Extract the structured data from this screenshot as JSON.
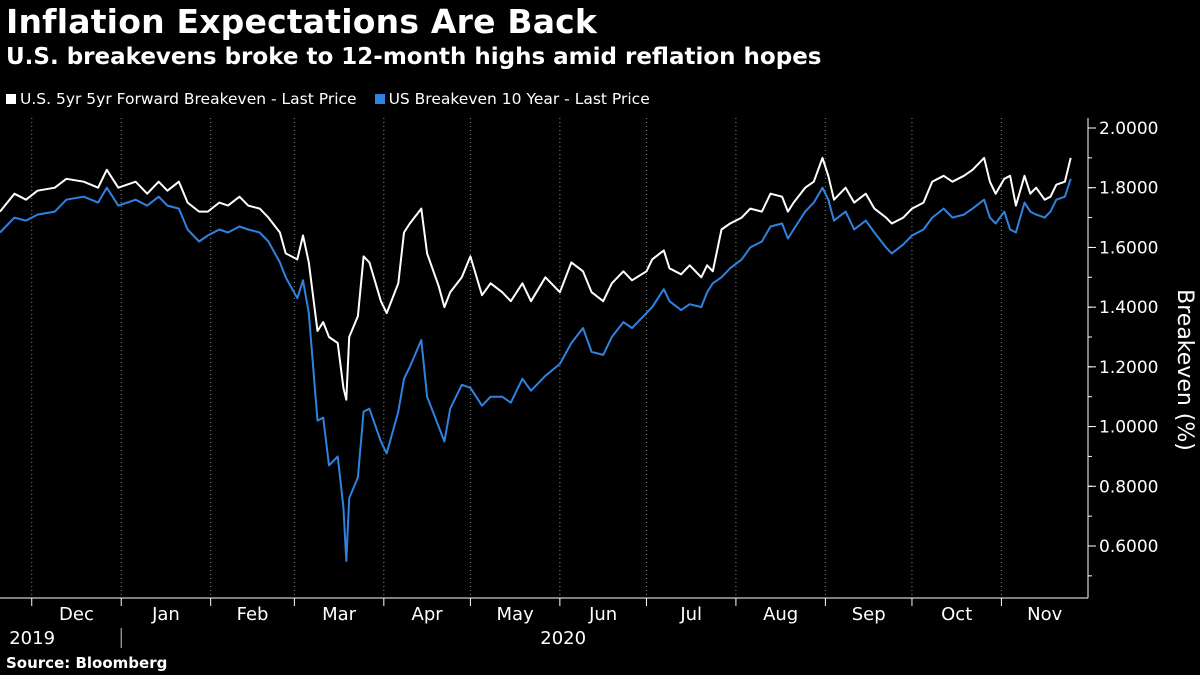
{
  "title": "Inflation Expectations Are Back",
  "subtitle": "U.S. breakevens broke to 12-month highs amid reflation hopes",
  "source": "Source: Bloomberg",
  "colors": {
    "background": "#000000",
    "series1": "#ffffff",
    "series2": "#2f82e0"
  },
  "chart_data": {
    "type": "line",
    "title": "Inflation Expectations Are Back",
    "subtitle": "U.S. breakevens broke to 12-month highs amid reflation hopes",
    "ylabel": "Breakeven (%)",
    "ylim": [
      0.5,
      2.05
    ],
    "yticks": [
      0.6,
      0.8,
      1.0,
      1.2,
      1.4,
      1.6,
      1.8,
      2.0
    ],
    "ytick_labels": [
      "0.6000",
      "0.8000",
      "1.0000",
      "1.2000",
      "1.4000",
      "1.6000",
      "1.8000",
      "2.0000"
    ],
    "xlim": [
      "2019-11-20",
      "2020-12-01"
    ],
    "month_labels": [
      "Dec",
      "Jan",
      "Feb",
      "Mar",
      "Apr",
      "May",
      "Jun",
      "Jul",
      "Aug",
      "Sep",
      "Oct",
      "Nov"
    ],
    "month_starts": [
      "2019-12-01",
      "2020-01-01",
      "2020-02-01",
      "2020-03-01",
      "2020-04-01",
      "2020-05-01",
      "2020-06-01",
      "2020-07-01",
      "2020-08-01",
      "2020-09-01",
      "2020-10-01",
      "2020-11-01"
    ],
    "year_labels": [
      {
        "label": "2019",
        "date": "2019-12-15"
      },
      {
        "label": "2020",
        "date": "2020-06-16"
      }
    ],
    "grid": "vertical dotted at month starts",
    "legend_position": "top-left",
    "series": [
      {
        "name": "U.S. 5yr 5yr Forward Breakeven - Last Price",
        "color": "#ffffff",
        "points": [
          [
            "2019-11-20",
            1.72
          ],
          [
            "2019-11-25",
            1.78
          ],
          [
            "2019-11-29",
            1.76
          ],
          [
            "2019-12-03",
            1.79
          ],
          [
            "2019-12-09",
            1.8
          ],
          [
            "2019-12-13",
            1.83
          ],
          [
            "2019-12-19",
            1.82
          ],
          [
            "2019-12-24",
            1.8
          ],
          [
            "2019-12-27",
            1.86
          ],
          [
            "2019-12-31",
            1.8
          ],
          [
            "2020-01-06",
            1.82
          ],
          [
            "2020-01-10",
            1.78
          ],
          [
            "2020-01-14",
            1.82
          ],
          [
            "2020-01-17",
            1.79
          ],
          [
            "2020-01-21",
            1.82
          ],
          [
            "2020-01-24",
            1.75
          ],
          [
            "2020-01-28",
            1.72
          ],
          [
            "2020-01-31",
            1.72
          ],
          [
            "2020-02-04",
            1.75
          ],
          [
            "2020-02-07",
            1.74
          ],
          [
            "2020-02-11",
            1.77
          ],
          [
            "2020-02-14",
            1.74
          ],
          [
            "2020-02-18",
            1.73
          ],
          [
            "2020-02-21",
            1.7
          ],
          [
            "2020-02-25",
            1.65
          ],
          [
            "2020-02-27",
            1.58
          ],
          [
            "2020-03-02",
            1.56
          ],
          [
            "2020-03-04",
            1.64
          ],
          [
            "2020-03-06",
            1.55
          ],
          [
            "2020-03-09",
            1.32
          ],
          [
            "2020-03-11",
            1.35
          ],
          [
            "2020-03-13",
            1.3
          ],
          [
            "2020-03-16",
            1.28
          ],
          [
            "2020-03-18",
            1.13
          ],
          [
            "2020-03-19",
            1.09
          ],
          [
            "2020-03-20",
            1.3
          ],
          [
            "2020-03-23",
            1.37
          ],
          [
            "2020-03-25",
            1.57
          ],
          [
            "2020-03-27",
            1.55
          ],
          [
            "2020-03-31",
            1.42
          ],
          [
            "2020-04-02",
            1.38
          ],
          [
            "2020-04-06",
            1.48
          ],
          [
            "2020-04-08",
            1.65
          ],
          [
            "2020-04-10",
            1.68
          ],
          [
            "2020-04-14",
            1.73
          ],
          [
            "2020-04-16",
            1.58
          ],
          [
            "2020-04-20",
            1.47
          ],
          [
            "2020-04-22",
            1.4
          ],
          [
            "2020-04-24",
            1.45
          ],
          [
            "2020-04-28",
            1.5
          ],
          [
            "2020-05-01",
            1.57
          ],
          [
            "2020-05-05",
            1.44
          ],
          [
            "2020-05-08",
            1.48
          ],
          [
            "2020-05-12",
            1.45
          ],
          [
            "2020-05-15",
            1.42
          ],
          [
            "2020-05-19",
            1.48
          ],
          [
            "2020-05-22",
            1.42
          ],
          [
            "2020-05-27",
            1.5
          ],
          [
            "2020-06-01",
            1.45
          ],
          [
            "2020-06-05",
            1.55
          ],
          [
            "2020-06-09",
            1.52
          ],
          [
            "2020-06-12",
            1.45
          ],
          [
            "2020-06-16",
            1.42
          ],
          [
            "2020-06-19",
            1.48
          ],
          [
            "2020-06-23",
            1.52
          ],
          [
            "2020-06-26",
            1.49
          ],
          [
            "2020-07-01",
            1.52
          ],
          [
            "2020-07-03",
            1.56
          ],
          [
            "2020-07-07",
            1.59
          ],
          [
            "2020-07-09",
            1.53
          ],
          [
            "2020-07-13",
            1.51
          ],
          [
            "2020-07-16",
            1.54
          ],
          [
            "2020-07-20",
            1.5
          ],
          [
            "2020-07-22",
            1.54
          ],
          [
            "2020-07-24",
            1.52
          ],
          [
            "2020-07-27",
            1.66
          ],
          [
            "2020-07-30",
            1.68
          ],
          [
            "2020-08-03",
            1.7
          ],
          [
            "2020-08-06",
            1.73
          ],
          [
            "2020-08-10",
            1.72
          ],
          [
            "2020-08-13",
            1.78
          ],
          [
            "2020-08-17",
            1.77
          ],
          [
            "2020-08-19",
            1.72
          ],
          [
            "2020-08-21",
            1.75
          ],
          [
            "2020-08-25",
            1.8
          ],
          [
            "2020-08-28",
            1.82
          ],
          [
            "2020-08-31",
            1.9
          ],
          [
            "2020-09-02",
            1.84
          ],
          [
            "2020-09-04",
            1.76
          ],
          [
            "2020-09-08",
            1.8
          ],
          [
            "2020-09-11",
            1.75
          ],
          [
            "2020-09-15",
            1.78
          ],
          [
            "2020-09-18",
            1.73
          ],
          [
            "2020-09-22",
            1.7
          ],
          [
            "2020-09-24",
            1.68
          ],
          [
            "2020-09-28",
            1.7
          ],
          [
            "2020-10-01",
            1.73
          ],
          [
            "2020-10-05",
            1.75
          ],
          [
            "2020-10-08",
            1.82
          ],
          [
            "2020-10-12",
            1.84
          ],
          [
            "2020-10-15",
            1.82
          ],
          [
            "2020-10-19",
            1.84
          ],
          [
            "2020-10-22",
            1.86
          ],
          [
            "2020-10-26",
            1.9
          ],
          [
            "2020-10-28",
            1.82
          ],
          [
            "2020-10-30",
            1.78
          ],
          [
            "2020-11-02",
            1.83
          ],
          [
            "2020-11-04",
            1.84
          ],
          [
            "2020-11-06",
            1.74
          ],
          [
            "2020-11-09",
            1.84
          ],
          [
            "2020-11-11",
            1.78
          ],
          [
            "2020-11-13",
            1.8
          ],
          [
            "2020-11-16",
            1.76
          ],
          [
            "2020-11-18",
            1.77
          ],
          [
            "2020-11-20",
            1.81
          ],
          [
            "2020-11-23",
            1.82
          ],
          [
            "2020-11-25",
            1.9
          ]
        ]
      },
      {
        "name": "US Breakeven 10 Year - Last Price",
        "color": "#2f82e0",
        "points": [
          [
            "2019-11-20",
            1.65
          ],
          [
            "2019-11-25",
            1.7
          ],
          [
            "2019-11-29",
            1.69
          ],
          [
            "2019-12-03",
            1.71
          ],
          [
            "2019-12-09",
            1.72
          ],
          [
            "2019-12-13",
            1.76
          ],
          [
            "2019-12-19",
            1.77
          ],
          [
            "2019-12-24",
            1.75
          ],
          [
            "2019-12-27",
            1.8
          ],
          [
            "2019-12-31",
            1.74
          ],
          [
            "2020-01-06",
            1.76
          ],
          [
            "2020-01-10",
            1.74
          ],
          [
            "2020-01-14",
            1.77
          ],
          [
            "2020-01-17",
            1.74
          ],
          [
            "2020-01-21",
            1.73
          ],
          [
            "2020-01-24",
            1.66
          ],
          [
            "2020-01-28",
            1.62
          ],
          [
            "2020-01-31",
            1.64
          ],
          [
            "2020-02-04",
            1.66
          ],
          [
            "2020-02-07",
            1.65
          ],
          [
            "2020-02-11",
            1.67
          ],
          [
            "2020-02-14",
            1.66
          ],
          [
            "2020-02-18",
            1.65
          ],
          [
            "2020-02-21",
            1.62
          ],
          [
            "2020-02-25",
            1.55
          ],
          [
            "2020-02-27",
            1.5
          ],
          [
            "2020-03-02",
            1.43
          ],
          [
            "2020-03-04",
            1.49
          ],
          [
            "2020-03-06",
            1.38
          ],
          [
            "2020-03-09",
            1.02
          ],
          [
            "2020-03-11",
            1.03
          ],
          [
            "2020-03-13",
            0.87
          ],
          [
            "2020-03-16",
            0.9
          ],
          [
            "2020-03-18",
            0.73
          ],
          [
            "2020-03-19",
            0.55
          ],
          [
            "2020-03-20",
            0.76
          ],
          [
            "2020-03-23",
            0.83
          ],
          [
            "2020-03-25",
            1.05
          ],
          [
            "2020-03-27",
            1.06
          ],
          [
            "2020-03-31",
            0.95
          ],
          [
            "2020-04-02",
            0.91
          ],
          [
            "2020-04-06",
            1.05
          ],
          [
            "2020-04-08",
            1.16
          ],
          [
            "2020-04-10",
            1.2
          ],
          [
            "2020-04-14",
            1.29
          ],
          [
            "2020-04-16",
            1.1
          ],
          [
            "2020-04-20",
            1.0
          ],
          [
            "2020-04-22",
            0.95
          ],
          [
            "2020-04-24",
            1.06
          ],
          [
            "2020-04-28",
            1.14
          ],
          [
            "2020-05-01",
            1.13
          ],
          [
            "2020-05-05",
            1.07
          ],
          [
            "2020-05-08",
            1.1
          ],
          [
            "2020-05-12",
            1.1
          ],
          [
            "2020-05-15",
            1.08
          ],
          [
            "2020-05-19",
            1.16
          ],
          [
            "2020-05-22",
            1.12
          ],
          [
            "2020-05-27",
            1.17
          ],
          [
            "2020-06-01",
            1.21
          ],
          [
            "2020-06-05",
            1.28
          ],
          [
            "2020-06-09",
            1.33
          ],
          [
            "2020-06-12",
            1.25
          ],
          [
            "2020-06-16",
            1.24
          ],
          [
            "2020-06-19",
            1.3
          ],
          [
            "2020-06-23",
            1.35
          ],
          [
            "2020-06-26",
            1.33
          ],
          [
            "2020-07-01",
            1.38
          ],
          [
            "2020-07-03",
            1.4
          ],
          [
            "2020-07-07",
            1.46
          ],
          [
            "2020-07-09",
            1.42
          ],
          [
            "2020-07-13",
            1.39
          ],
          [
            "2020-07-16",
            1.41
          ],
          [
            "2020-07-20",
            1.4
          ],
          [
            "2020-07-22",
            1.45
          ],
          [
            "2020-07-24",
            1.48
          ],
          [
            "2020-07-27",
            1.5
          ],
          [
            "2020-07-30",
            1.53
          ],
          [
            "2020-08-03",
            1.56
          ],
          [
            "2020-08-06",
            1.6
          ],
          [
            "2020-08-10",
            1.62
          ],
          [
            "2020-08-13",
            1.67
          ],
          [
            "2020-08-17",
            1.68
          ],
          [
            "2020-08-19",
            1.63
          ],
          [
            "2020-08-21",
            1.66
          ],
          [
            "2020-08-25",
            1.72
          ],
          [
            "2020-08-28",
            1.75
          ],
          [
            "2020-08-31",
            1.8
          ],
          [
            "2020-09-02",
            1.76
          ],
          [
            "2020-09-04",
            1.69
          ],
          [
            "2020-09-08",
            1.72
          ],
          [
            "2020-09-11",
            1.66
          ],
          [
            "2020-09-15",
            1.69
          ],
          [
            "2020-09-18",
            1.65
          ],
          [
            "2020-09-22",
            1.6
          ],
          [
            "2020-09-24",
            1.58
          ],
          [
            "2020-09-28",
            1.61
          ],
          [
            "2020-10-01",
            1.64
          ],
          [
            "2020-10-05",
            1.66
          ],
          [
            "2020-10-08",
            1.7
          ],
          [
            "2020-10-12",
            1.73
          ],
          [
            "2020-10-15",
            1.7
          ],
          [
            "2020-10-19",
            1.71
          ],
          [
            "2020-10-22",
            1.73
          ],
          [
            "2020-10-26",
            1.76
          ],
          [
            "2020-10-28",
            1.7
          ],
          [
            "2020-10-30",
            1.68
          ],
          [
            "2020-11-02",
            1.72
          ],
          [
            "2020-11-04",
            1.66
          ],
          [
            "2020-11-06",
            1.65
          ],
          [
            "2020-11-09",
            1.75
          ],
          [
            "2020-11-11",
            1.72
          ],
          [
            "2020-11-13",
            1.71
          ],
          [
            "2020-11-16",
            1.7
          ],
          [
            "2020-11-18",
            1.72
          ],
          [
            "2020-11-20",
            1.76
          ],
          [
            "2020-11-23",
            1.77
          ],
          [
            "2020-11-25",
            1.83
          ]
        ]
      }
    ]
  }
}
